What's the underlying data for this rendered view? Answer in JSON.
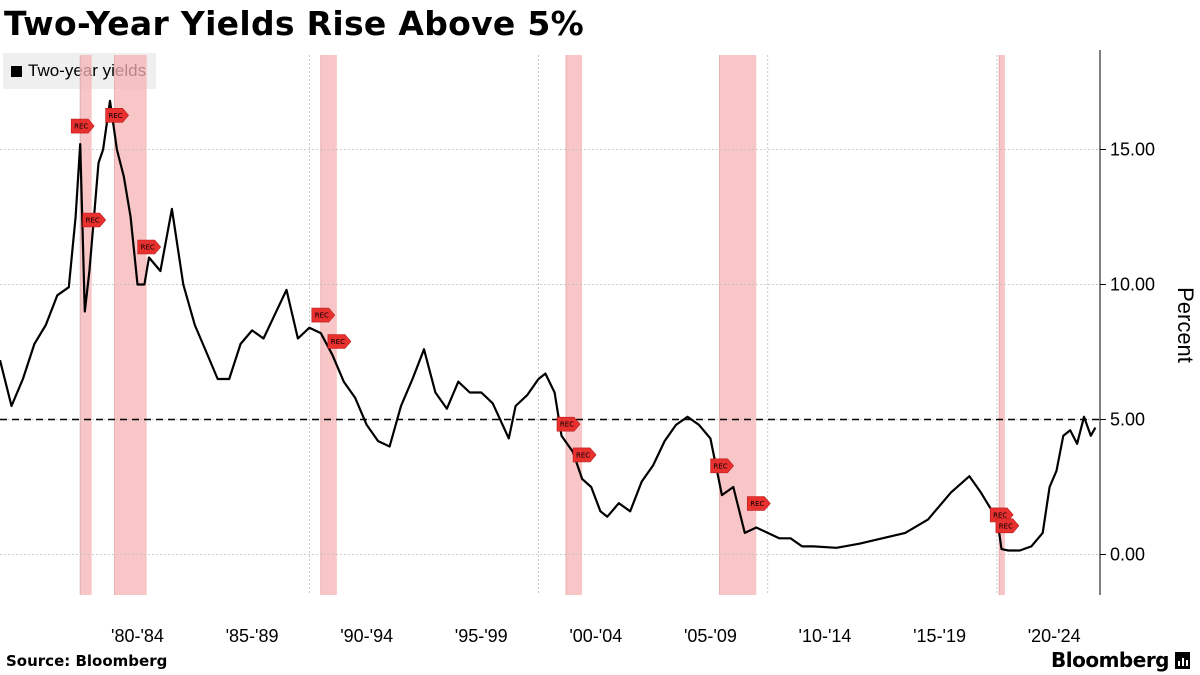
{
  "chart_data": {
    "type": "line",
    "title": "Two-Year Yields Rise Above 5%",
    "ylabel": "Percent",
    "xlabel": "",
    "ylim": [
      -1.5,
      18.5
    ],
    "xlim": [
      1976.5,
      2024.5
    ],
    "y_ticks": [
      0,
      5,
      10,
      15
    ],
    "y_tick_labels": [
      "0.00",
      "5.00",
      "10.00",
      "15.00"
    ],
    "x_tick_labels": [
      "'80-'84",
      "'85-'89",
      "'90-'94",
      "'95-'99",
      "'00-'04",
      "'05-'09",
      "'10-'14",
      "'15-'19",
      "'20-'24"
    ],
    "x_tick_centers": [
      1982.5,
      1987.5,
      1992.5,
      1997.5,
      2002.5,
      2007.5,
      2012.5,
      2017.5,
      2022.5
    ],
    "x_gridlines": [
      1980,
      1990,
      2000,
      2010,
      2020
    ],
    "y_gridlines": true,
    "legend": {
      "position": "top-left",
      "entries": [
        {
          "label": "Two-year yields",
          "color": "#000000"
        }
      ]
    },
    "reference_line": {
      "y": 5,
      "style": "dashed",
      "color": "#000000"
    },
    "series": [
      {
        "name": "Two-year yields",
        "color": "#000000",
        "x": [
          1976.5,
          1977.0,
          1977.5,
          1978.0,
          1978.5,
          1979.0,
          1979.5,
          1979.8,
          1980.0,
          1980.2,
          1980.4,
          1980.6,
          1980.8,
          1981.0,
          1981.3,
          1981.6,
          1981.9,
          1982.2,
          1982.5,
          1982.8,
          1983.0,
          1983.5,
          1984.0,
          1984.5,
          1985.0,
          1985.5,
          1986.0,
          1986.5,
          1987.0,
          1987.5,
          1988.0,
          1988.5,
          1989.0,
          1989.5,
          1990.0,
          1990.5,
          1991.0,
          1991.5,
          1992.0,
          1992.5,
          1993.0,
          1993.5,
          1994.0,
          1994.5,
          1995.0,
          1995.5,
          1996.0,
          1996.5,
          1997.0,
          1997.5,
          1998.0,
          1998.7,
          1999.0,
          1999.5,
          2000.0,
          2000.3,
          2000.7,
          2001.0,
          2001.5,
          2001.9,
          2002.3,
          2002.7,
          2003.0,
          2003.5,
          2004.0,
          2004.5,
          2005.0,
          2005.5,
          2006.0,
          2006.5,
          2007.0,
          2007.5,
          2008.0,
          2008.5,
          2009.0,
          2009.5,
          2010.0,
          2010.5,
          2011.0,
          2011.5,
          2012.0,
          2013.0,
          2014.0,
          2015.0,
          2016.0,
          2017.0,
          2018.0,
          2018.8,
          2019.3,
          2019.8,
          2020.0,
          2020.2,
          2020.5,
          2021.0,
          2021.5,
          2022.0,
          2022.3,
          2022.6,
          2022.9,
          2023.2,
          2023.5,
          2023.8,
          2024.1,
          2024.3
        ],
        "values": [
          7.2,
          5.5,
          6.5,
          7.8,
          8.5,
          9.6,
          9.9,
          12.5,
          15.2,
          9.0,
          10.5,
          12.5,
          14.5,
          15.0,
          16.8,
          15.0,
          14.0,
          12.5,
          10.0,
          10.0,
          11.0,
          10.5,
          12.8,
          10.0,
          8.5,
          7.5,
          6.5,
          6.5,
          7.8,
          8.3,
          8.0,
          8.9,
          9.8,
          8.0,
          8.4,
          8.2,
          7.4,
          6.4,
          5.8,
          4.8,
          4.2,
          4.0,
          5.5,
          6.5,
          7.6,
          6.0,
          5.4,
          6.4,
          6.0,
          6.0,
          5.6,
          4.3,
          5.5,
          5.9,
          6.5,
          6.7,
          6.0,
          4.4,
          3.8,
          2.8,
          2.5,
          1.6,
          1.4,
          1.9,
          1.6,
          2.7,
          3.3,
          4.2,
          4.8,
          5.1,
          4.8,
          4.3,
          2.2,
          2.5,
          0.8,
          1.0,
          0.8,
          0.6,
          0.6,
          0.3,
          0.3,
          0.25,
          0.4,
          0.6,
          0.8,
          1.3,
          2.3,
          2.9,
          2.3,
          1.6,
          1.4,
          0.2,
          0.15,
          0.15,
          0.3,
          0.8,
          2.5,
          3.1,
          4.4,
          4.6,
          4.1,
          5.1,
          4.4,
          4.7
        ]
      }
    ],
    "recessions": [
      {
        "start": 1980.0,
        "end": 1980.5,
        "label": "REC"
      },
      {
        "start": 1981.5,
        "end": 1982.9,
        "label": "REC"
      },
      {
        "start": 1990.5,
        "end": 1991.2,
        "label": "REC"
      },
      {
        "start": 2001.2,
        "end": 2001.9,
        "label": "REC"
      },
      {
        "start": 2007.9,
        "end": 2009.5,
        "label": "REC"
      },
      {
        "start": 2020.1,
        "end": 2020.35,
        "label": "REC"
      }
    ],
    "recession_color": "#f6b3b3",
    "recession_marker_color": "#e8302f"
  },
  "source": "Source: Bloomberg",
  "brand": "Bloomberg"
}
